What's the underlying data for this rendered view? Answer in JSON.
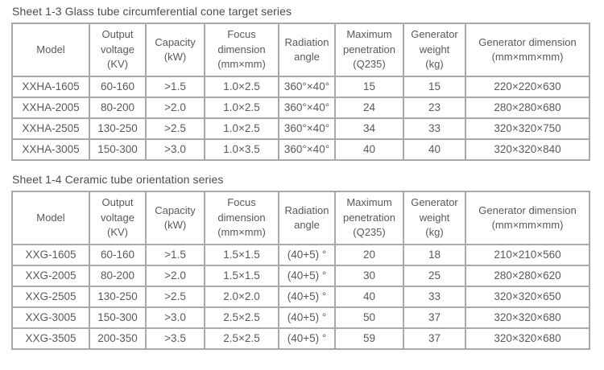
{
  "colors": {
    "background": "#ffffff",
    "table_border": "#a9a9a9",
    "cell_text": "#595959",
    "title_text": "#4d4d4d"
  },
  "tables": [
    {
      "title": "Sheet 1-3 Glass tube circumferential cone target series",
      "headers": [
        "Model",
        "Output\nvoltage\n(KV)",
        "Capacity\n(kW)",
        "Focus\ndimension\n(mm×mm)",
        "Radiation\nangle",
        "Maximum\npenetration\n(Q235)",
        "Generator\nweight\n(kg)",
        "Generator dimension\n(mm×mm×mm)"
      ],
      "rows": [
        [
          "XXHA-1605",
          "60-160",
          ">1.5",
          "1.0×2.5",
          "360°×40°",
          "15",
          "15",
          "220×220×630"
        ],
        [
          "XXHA-2005",
          "80-200",
          ">2.0",
          "1.0×2.5",
          "360°×40°",
          "24",
          "23",
          "280×280×680"
        ],
        [
          "XXHA-2505",
          "130-250",
          ">2.5",
          "1.0×2.5",
          "360°×40°",
          "34",
          "33",
          "320×320×750"
        ],
        [
          "XXHA-3005",
          "150-300",
          ">3.0",
          "1.0×3.5",
          "360°×40°",
          "40",
          "40",
          "320×320×840"
        ]
      ]
    },
    {
      "title": "Sheet 1-4 Ceramic tube orientation series",
      "headers": [
        "Model",
        "Output\nvoltage\n(KV)",
        "Capacity\n(kW)",
        "Focus\ndimension\n(mm×mm)",
        "Radiation\nangle",
        "Maximum\npenetration\n(Q235)",
        "Generator\nweight\n(kg)",
        "Generator dimension\n(mm×mm×mm)"
      ],
      "rows": [
        [
          "XXG-1605",
          "60-160",
          ">1.5",
          "1.5×1.5",
          "(40+5) °",
          "20",
          "18",
          "210×210×560"
        ],
        [
          "XXG-2005",
          "80-200",
          ">2.0",
          "1.5×1.5",
          "(40+5) °",
          "30",
          "25",
          "280×280×620"
        ],
        [
          "XXG-2505",
          "130-250",
          ">2.5",
          "2.0×2.0",
          "(40+5) °",
          "40",
          "33",
          "320×320×650"
        ],
        [
          "XXG-3005",
          "150-300",
          ">3.0",
          "2.5×2.5",
          "(40+5) °",
          "50",
          "37",
          "320×320×680"
        ],
        [
          "XXG-3505",
          "200-350",
          ">3.5",
          "2.5×2.5",
          "(40+5) °",
          "59",
          "37",
          "320×320×680"
        ]
      ]
    }
  ]
}
